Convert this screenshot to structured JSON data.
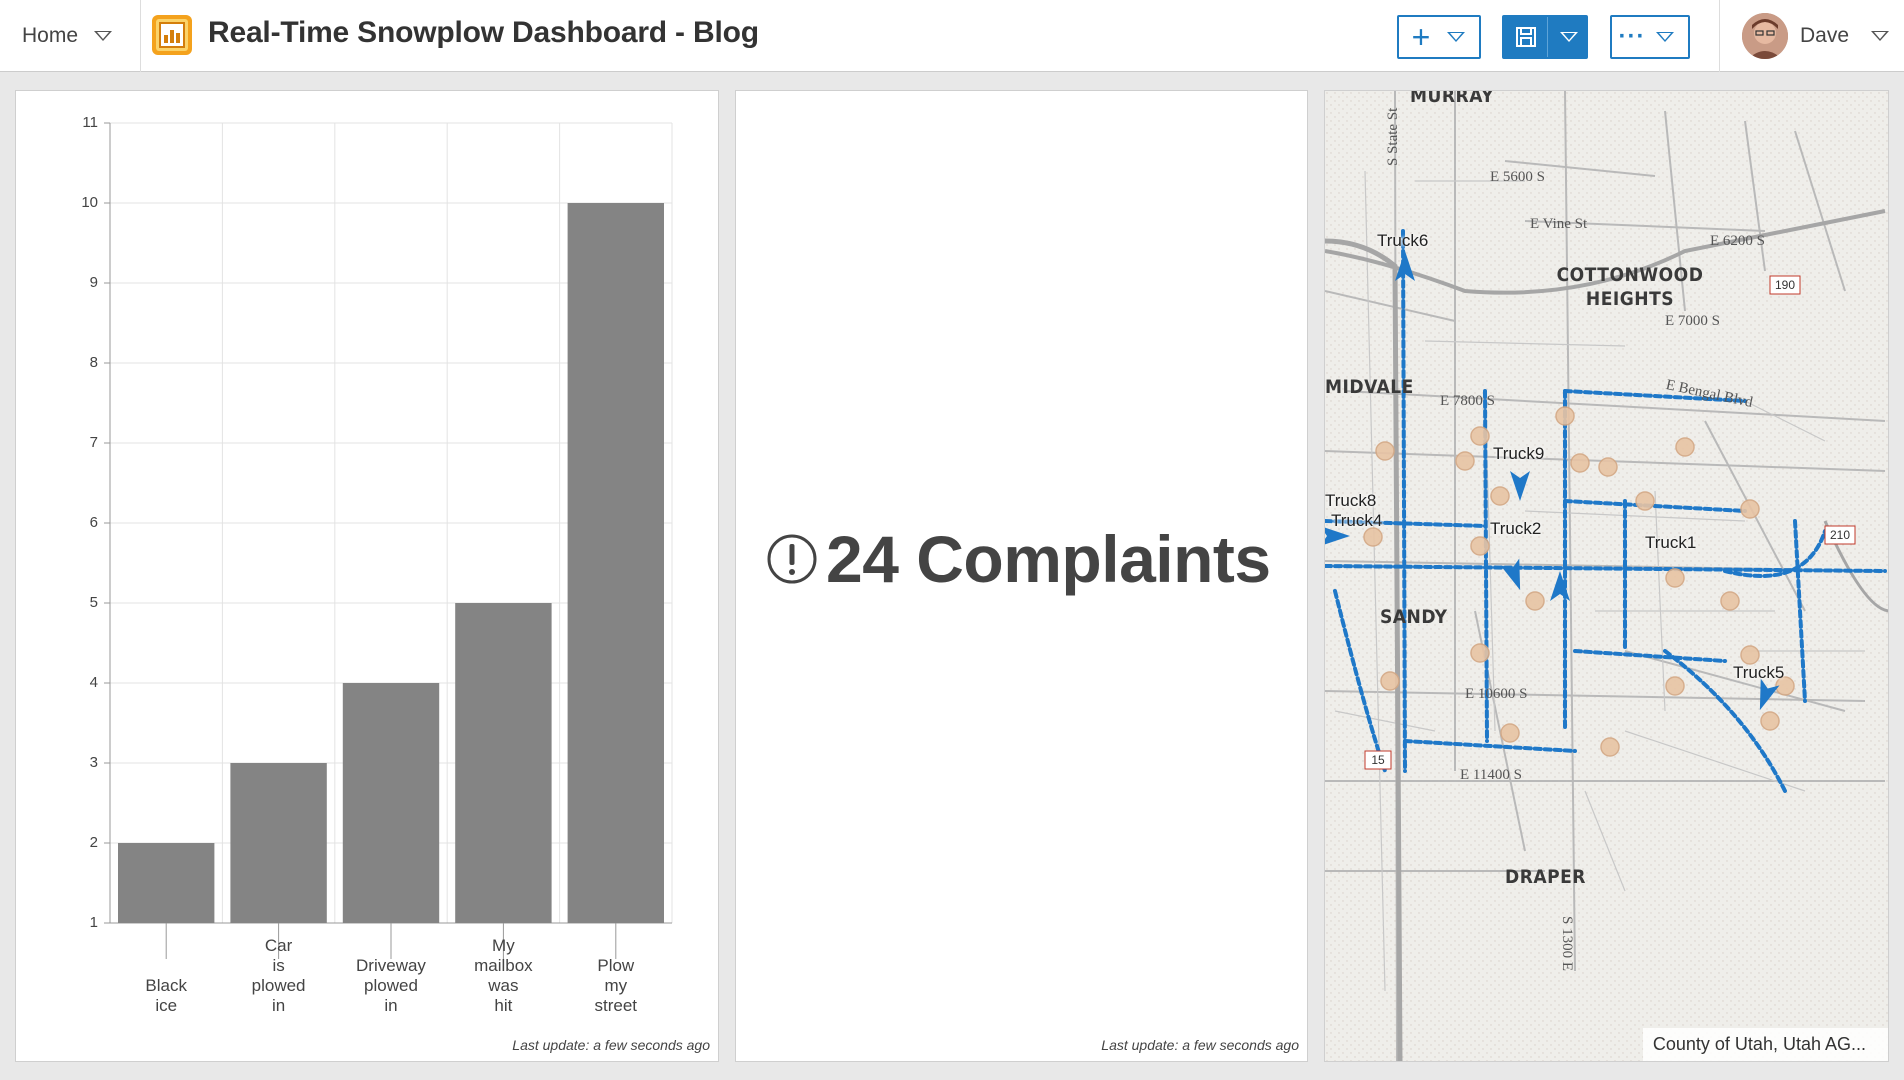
{
  "header": {
    "home_label": "Home",
    "title": "Real-Time Snowplow Dashboard - Blog",
    "user_name": "Dave"
  },
  "chart_panel": {
    "last_update": "Last update: a few seconds ago"
  },
  "chart_data": {
    "type": "bar",
    "categories": [
      "Black\nice",
      "Car\nis\nplowed\nin",
      "Driveway\nplowed\nin",
      "My\nmailbox\nwas\nhit",
      "Plow\nmy\nstreet"
    ],
    "values": [
      2,
      3,
      4,
      5,
      10
    ],
    "ylim": [
      1,
      11
    ],
    "yticks": [
      1,
      2,
      3,
      4,
      5,
      6,
      7,
      8,
      9,
      10,
      11
    ],
    "bar_color": "#848484",
    "grid": true,
    "title": "",
    "xlabel": "",
    "ylabel": ""
  },
  "indicator_panel": {
    "value_text": "24 Complaints",
    "last_update": "Last update: a few seconds ago"
  },
  "map_panel": {
    "attribution": "County of Utah, Utah AG...",
    "places": [
      "MURRAY",
      "COTTONWOOD HEIGHTS",
      "MIDVALE",
      "SANDY",
      "DRAPER"
    ],
    "roads": [
      "E 5600 S",
      "E Vine St",
      "E 6200 S",
      "E 7000 S",
      "E 7800 S",
      "E Bengal Blvd",
      "E 10600 S",
      "E 11400 S",
      "S State St",
      "S 1300 E"
    ],
    "trucks": [
      "Truck6",
      "Truck9",
      "Truck8",
      "Truck4",
      "Truck2",
      "Truck1",
      "Truck5"
    ],
    "highways": [
      "190",
      "210",
      "15"
    ],
    "route_color": "#1f78c8",
    "complaint_color": "#e8c4a4"
  }
}
